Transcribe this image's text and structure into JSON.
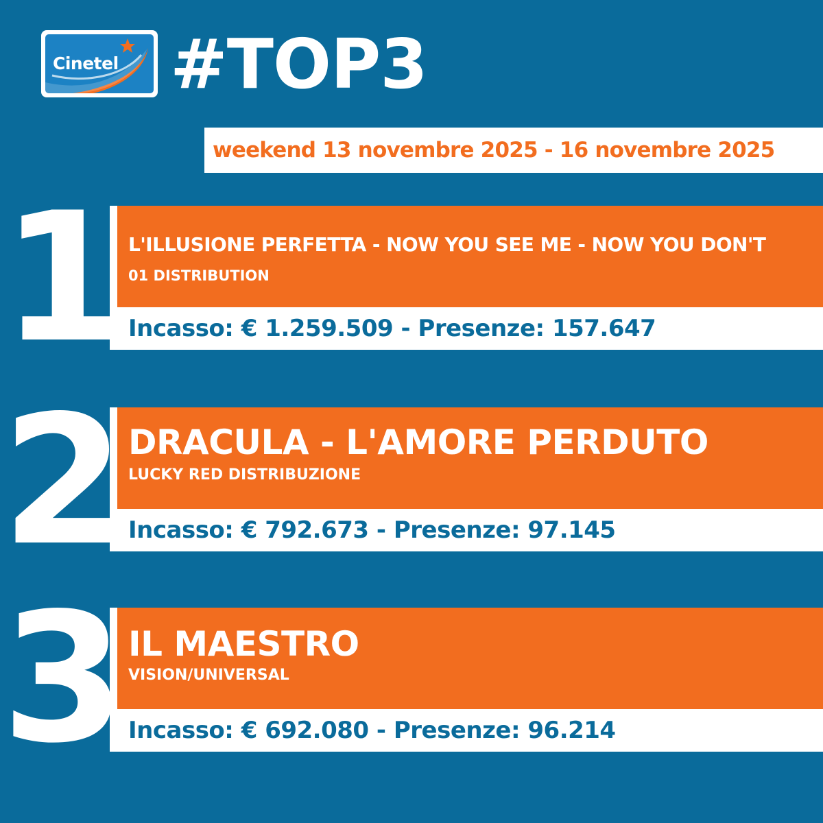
{
  "logo": {
    "text": "Cinetel",
    "colors": {
      "background": "#1c82c4",
      "swoosh": "#f26d1f",
      "star": "#f26d1f"
    }
  },
  "header": {
    "title": "#TOP3",
    "period": "weekend 13 novembre 2025 - 16 novembre 2025"
  },
  "colors": {
    "background": "#0a6b9b",
    "accent": "#f26d1f",
    "panel": "#ffffff"
  },
  "entries": [
    {
      "rank": "1",
      "title": "L'ILLUSIONE PERFETTA - NOW YOU SEE ME - NOW YOU DON'T",
      "distributor": "01 DISTRIBUTION",
      "stats": "Incasso: € 1.259.509 - Presenze: 157.647"
    },
    {
      "rank": "2",
      "title": "DRACULA - L'AMORE PERDUTO",
      "distributor": "LUCKY RED DISTRIBUZIONE",
      "stats": "Incasso: € 792.673 - Presenze: 97.145"
    },
    {
      "rank": "3",
      "title": "IL MAESTRO",
      "distributor": "VISION/UNIVERSAL",
      "stats": "Incasso: € 692.080 - Presenze: 96.214"
    }
  ]
}
